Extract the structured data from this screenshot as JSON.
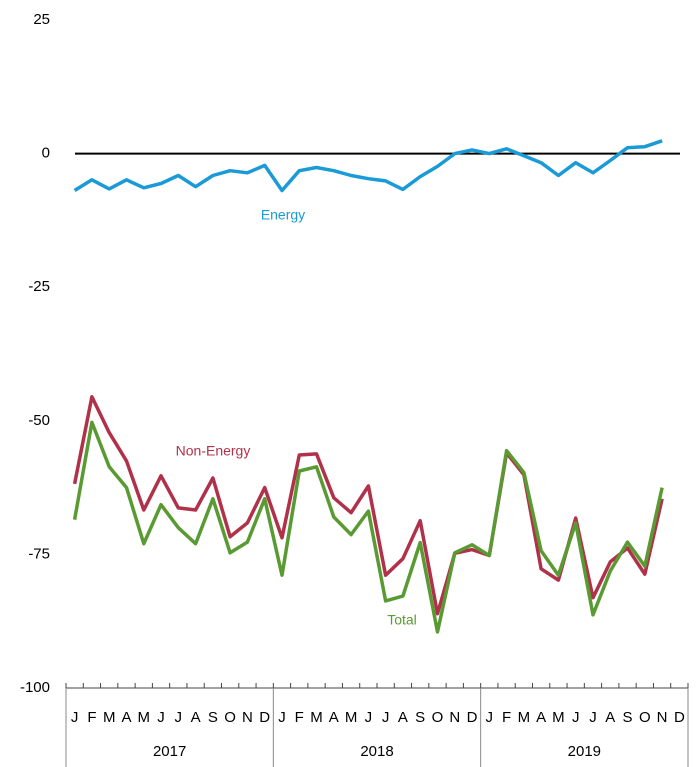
{
  "chart_data": {
    "type": "line",
    "categories": [
      "J",
      "F",
      "M",
      "A",
      "M",
      "J",
      "J",
      "A",
      "S",
      "O",
      "N",
      "D",
      "J",
      "F",
      "M",
      "A",
      "M",
      "J",
      "J",
      "A",
      "S",
      "O",
      "N",
      "D",
      "J",
      "F",
      "M",
      "A",
      "M",
      "J",
      "J",
      "A",
      "S",
      "O",
      "N",
      "D"
    ],
    "groups": [
      "2017",
      "2018",
      "2019"
    ],
    "ylim": [
      -100,
      25
    ],
    "yticks": [
      25,
      0,
      -25,
      -50,
      -75,
      -100
    ],
    "zero_line": true,
    "series": [
      {
        "name": "Energy",
        "color": "#1a9ad6",
        "values": [
          -6.9,
          -4.9,
          -6.6,
          -4.9,
          -6.4,
          -5.6,
          -4.1,
          -6.2,
          -4.1,
          -3.2,
          -3.6,
          -2.2,
          -6.9,
          -3.2,
          -2.6,
          -3.2,
          -4.1,
          -4.7,
          -5.1,
          -6.7,
          -4.3,
          -2.4,
          0,
          0.7,
          0,
          0.9,
          -0.4,
          -1.7,
          -4.1,
          -1.7,
          -3.6,
          -1.3,
          1.1,
          1.3,
          2.4,
          null
        ]
      },
      {
        "name": "Non-Energy",
        "color": "#b0324a",
        "values": [
          -61.8,
          -45.5,
          -52.2,
          -57.5,
          -66.7,
          -60.3,
          -66.3,
          -66.7,
          -60.7,
          -71.7,
          -69.1,
          -62.5,
          -71.9,
          -56.4,
          -56.2,
          -64.4,
          -67.2,
          -62.2,
          -78.9,
          -75.8,
          -68.7,
          -86.1,
          -74.8,
          -74.1,
          -75.2,
          -56,
          -60.1,
          -77.7,
          -79.8,
          -68.2,
          -83.1,
          -76.4,
          -73.8,
          -78.7,
          -64.6,
          null
        ]
      },
      {
        "name": "Total",
        "color": "#5a9a32",
        "values": [
          -68.5,
          -50.3,
          -58.6,
          -62.5,
          -73,
          -65.7,
          -70,
          -73,
          -64.6,
          -74.7,
          -72.7,
          -64.6,
          -78.9,
          -59.4,
          -58.6,
          -68,
          -71.3,
          -66.9,
          -83.7,
          -82.8,
          -72.8,
          -89.5,
          -74.7,
          -73.2,
          -75.2,
          -55.6,
          -59.7,
          -74.3,
          -78.9,
          -69.1,
          -86.3,
          -78.1,
          -72.7,
          -77.2,
          -62.5,
          null
        ]
      }
    ]
  }
}
